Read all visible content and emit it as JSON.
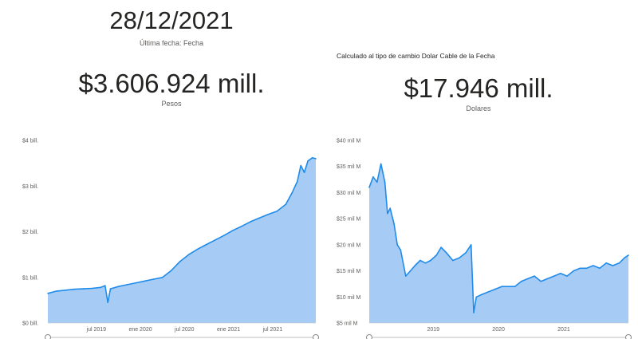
{
  "header": {
    "last_date": "28/12/2021",
    "last_date_caption": "Última fecha: Fecha",
    "exchange_note": "Calculado al tipo de cambio Dolar Cable de la Fecha"
  },
  "kpis": {
    "pesos": {
      "value": "$3.606.924 mill.",
      "caption": "Pesos"
    },
    "dolares": {
      "value": "$17.946 mill.",
      "caption": "Dolares"
    }
  },
  "colors": {
    "line": "#1f8bea",
    "area": "#a6ccf5",
    "axis": "#c8c6c4",
    "scrollbar": "#e1dfdd"
  },
  "chart_data": [
    {
      "type": "area",
      "ylim": [
        0,
        4
      ],
      "y_ticks": [
        0,
        1,
        2,
        3,
        4
      ],
      "y_tick_labels": [
        "$0 bill.",
        "$1 bill.",
        "$2 bill.",
        "$3 bill.",
        "$4 bill."
      ],
      "x_tick_labels": [
        "jul 2019",
        "ene 2020",
        "jul 2020",
        "ene 2021",
        "jul 2021"
      ],
      "x_tick_positions": [
        2019.5,
        2020.0,
        2020.5,
        2021.0,
        2021.5
      ],
      "xlim": [
        2018.95,
        2021.99
      ],
      "x": [
        2018.95,
        2019.05,
        2019.15,
        2019.25,
        2019.35,
        2019.45,
        2019.55,
        2019.6,
        2019.63,
        2019.66,
        2019.75,
        2019.85,
        2019.95,
        2020.05,
        2020.15,
        2020.25,
        2020.35,
        2020.45,
        2020.55,
        2020.65,
        2020.75,
        2020.85,
        2020.95,
        2021.05,
        2021.15,
        2021.25,
        2021.35,
        2021.45,
        2021.55,
        2021.65,
        2021.72,
        2021.78,
        2021.82,
        2021.86,
        2021.9,
        2021.95,
        2021.99
      ],
      "y": [
        0.65,
        0.7,
        0.72,
        0.74,
        0.75,
        0.76,
        0.78,
        0.82,
        0.45,
        0.75,
        0.8,
        0.84,
        0.88,
        0.92,
        0.96,
        1.0,
        1.15,
        1.35,
        1.5,
        1.62,
        1.72,
        1.82,
        1.92,
        2.03,
        2.12,
        2.22,
        2.3,
        2.38,
        2.45,
        2.6,
        2.85,
        3.1,
        3.45,
        3.3,
        3.55,
        3.62,
        3.6
      ]
    },
    {
      "type": "area",
      "ylim": [
        5,
        40
      ],
      "y_ticks": [
        5,
        10,
        15,
        20,
        25,
        30,
        35,
        40
      ],
      "y_tick_labels": [
        "$5 mil M",
        "$10 mil M",
        "$15 mil M",
        "$20 mil M",
        "$25 mil M",
        "$30 mil M",
        "$35 mil M",
        "$40 mil M"
      ],
      "x_tick_labels": [
        "2019",
        "2020",
        "2021"
      ],
      "x_tick_positions": [
        2019.0,
        2020.0,
        2021.0
      ],
      "xlim": [
        2018.02,
        2021.99
      ],
      "x": [
        2018.02,
        2018.08,
        2018.14,
        2018.2,
        2018.26,
        2018.3,
        2018.34,
        2018.4,
        2018.45,
        2018.5,
        2018.58,
        2018.65,
        2018.72,
        2018.8,
        2018.88,
        2018.96,
        2019.05,
        2019.12,
        2019.2,
        2019.3,
        2019.4,
        2019.5,
        2019.58,
        2019.62,
        2019.66,
        2019.75,
        2019.85,
        2019.95,
        2020.05,
        2020.15,
        2020.25,
        2020.35,
        2020.45,
        2020.55,
        2020.65,
        2020.75,
        2020.85,
        2020.95,
        2021.05,
        2021.15,
        2021.25,
        2021.35,
        2021.45,
        2021.55,
        2021.65,
        2021.75,
        2021.85,
        2021.93,
        2021.99
      ],
      "y": [
        31,
        33,
        32,
        35.5,
        32,
        26,
        27,
        24,
        20,
        19,
        14,
        15,
        16,
        17,
        16.5,
        17,
        18,
        19.5,
        18.5,
        17,
        17.5,
        18.5,
        20,
        7,
        10,
        10.5,
        11,
        11.5,
        12,
        12,
        12,
        13,
        13.5,
        14,
        13,
        13.5,
        14,
        14.5,
        14,
        15,
        15.5,
        15.5,
        16,
        15.5,
        16.5,
        16,
        16.5,
        17.5,
        18
      ]
    }
  ]
}
